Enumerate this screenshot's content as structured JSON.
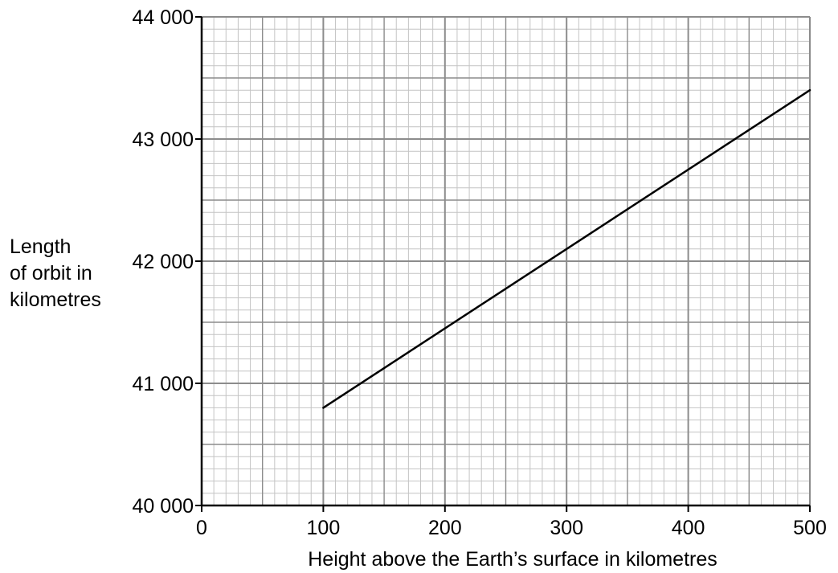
{
  "chart_data": {
    "type": "line",
    "title": "",
    "xlabel": "Height above the Earth’s surface in kilometres",
    "ylabel_lines": [
      "Length",
      "of orbit in",
      "kilometres"
    ],
    "xlim": [
      0,
      500
    ],
    "ylim": [
      40000,
      44000
    ],
    "x_ticks": [
      0,
      100,
      200,
      300,
      400,
      500
    ],
    "x_tick_labels": [
      "0",
      "100",
      "200",
      "300",
      "400",
      "500"
    ],
    "y_ticks": [
      40000,
      41000,
      42000,
      43000,
      44000
    ],
    "y_tick_labels": [
      "40 000",
      "41 000",
      "42 000",
      "43 000",
      "44 000"
    ],
    "x_major_step": 50,
    "x_minor_step": 10,
    "y_major_step": 500,
    "y_minor_step": 100,
    "grid": true,
    "series": [
      {
        "x": [
          100,
          500
        ],
        "y": [
          40800,
          43400
        ]
      }
    ],
    "colors": {
      "line": "#000000",
      "grid_major": "#8c8c8c",
      "grid_minor": "#c4c4c4",
      "axes": "#000000"
    }
  }
}
